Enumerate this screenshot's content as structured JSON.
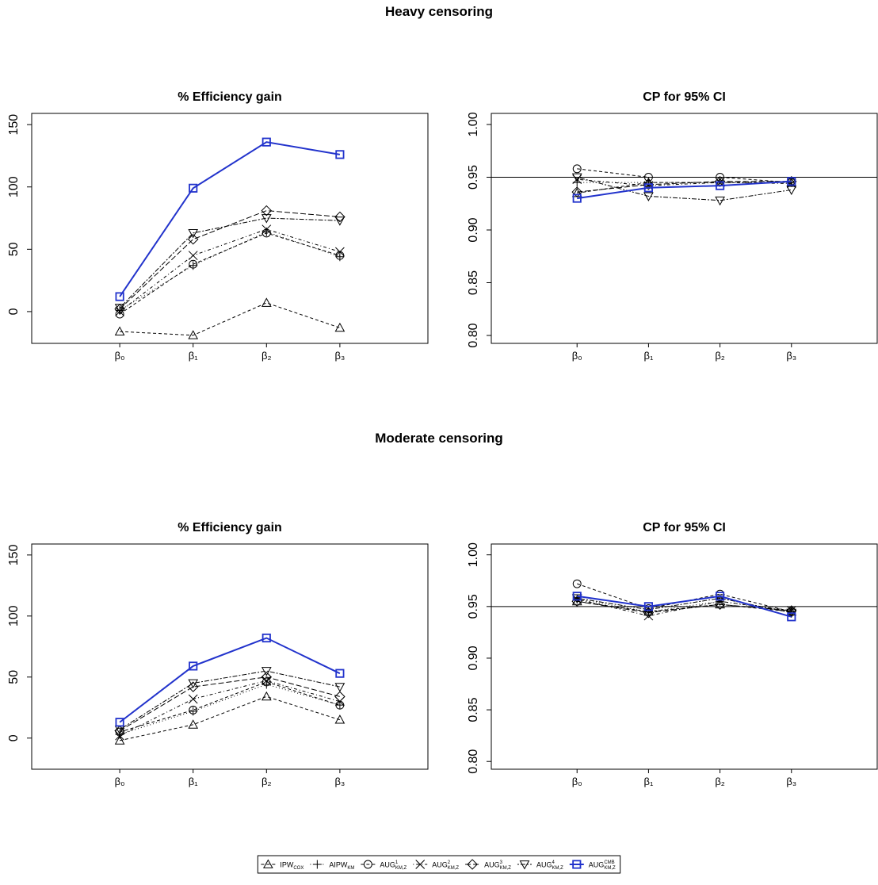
{
  "sections": [
    "Heavy censoring",
    "Moderate censoring"
  ],
  "legend": [
    {
      "name": "IPW",
      "sub": "COX",
      "marker": "triangle",
      "dash": "dashed",
      "color": "#000000"
    },
    {
      "name": "AIPW",
      "sub": "KM",
      "marker": "plus",
      "dash": "dotted",
      "color": "#000000"
    },
    {
      "name": "AUG",
      "sub": "KM,Z",
      "sup": "1",
      "marker": "circle",
      "dash": "dashed",
      "color": "#000000"
    },
    {
      "name": "AUG",
      "sub": "KM,Z",
      "sup": "2",
      "marker": "cross",
      "dash": "dotdash",
      "color": "#000000"
    },
    {
      "name": "AUG",
      "sub": "KM,Z",
      "sup": "3",
      "marker": "diamond",
      "dash": "longdash",
      "color": "#000000"
    },
    {
      "name": "AUG",
      "sub": "KM,Z",
      "sup": "4",
      "marker": "down-triangle",
      "dash": "twodash",
      "color": "#000000"
    },
    {
      "name": "AUG",
      "sub": "KM,Z",
      "sup": "CMB",
      "marker": "square",
      "dash": "solid",
      "color": "#2233cc"
    }
  ],
  "chart_data": [
    {
      "type": "line",
      "title": "% Efficiency gain",
      "x": [
        1,
        2,
        3,
        4
      ],
      "xlim": [
        -0.2,
        5.2
      ],
      "xticks": [
        {
          "value": 1,
          "label": "β₀"
        },
        {
          "value": 2,
          "label": "β₁"
        },
        {
          "value": 3,
          "label": "β₂"
        },
        {
          "value": 4,
          "label": "β₃"
        }
      ],
      "ylim": [
        -25.5,
        159
      ],
      "yticks": [
        0,
        50,
        100,
        150
      ],
      "series": [
        {
          "values": [
            -16,
            -19,
            7,
            -13
          ]
        },
        {
          "values": [
            1,
            37,
            64,
            44
          ]
        },
        {
          "values": [
            -2,
            38,
            63,
            45
          ]
        },
        {
          "values": [
            0,
            45,
            66,
            48
          ]
        },
        {
          "values": [
            2,
            58,
            81,
            76
          ]
        },
        {
          "values": [
            3,
            63,
            75,
            73
          ]
        },
        {
          "values": [
            12,
            99,
            136,
            126
          ]
        }
      ]
    },
    {
      "type": "line",
      "title": "CP for 95% CI",
      "x": [
        1,
        2,
        3,
        4
      ],
      "xlim": [
        -0.2,
        5.2
      ],
      "xticks": [
        {
          "value": 1,
          "label": "β₀"
        },
        {
          "value": 2,
          "label": "β₁"
        },
        {
          "value": 3,
          "label": "β₂"
        },
        {
          "value": 4,
          "label": "β₃"
        }
      ],
      "ylim": [
        0.7925,
        1.0105
      ],
      "yticks": [
        {
          "value": 0.8,
          "label": "0.80"
        },
        {
          "value": 0.85,
          "label": "0.85"
        },
        {
          "value": 0.9,
          "label": "0.90"
        },
        {
          "value": 0.95,
          "label": "0.95"
        },
        {
          "value": 1,
          "label": "1.00"
        }
      ],
      "hline": 0.95,
      "series": [
        {
          "values": [
            0.935,
            0.945,
            0.945,
            0.945
          ]
        },
        {
          "values": [
            0.945,
            0.945,
            0.945,
            0.945
          ]
        },
        {
          "values": [
            0.958,
            0.95,
            0.95,
            0.945
          ]
        },
        {
          "values": [
            0.948,
            0.942,
            0.945,
            0.944
          ]
        },
        {
          "values": [
            0.936,
            0.943,
            0.946,
            0.946
          ]
        },
        {
          "values": [
            0.95,
            0.932,
            0.928,
            0.938
          ]
        },
        {
          "values": [
            0.93,
            0.94,
            0.942,
            0.946
          ]
        }
      ]
    },
    {
      "type": "line",
      "title": "% Efficiency gain",
      "x": [
        1,
        2,
        3,
        4
      ],
      "xlim": [
        -0.2,
        5.2
      ],
      "xticks": [
        {
          "value": 1,
          "label": "β₀"
        },
        {
          "value": 2,
          "label": "β₁"
        },
        {
          "value": 3,
          "label": "β₂"
        },
        {
          "value": 4,
          "label": "β₃"
        }
      ],
      "ylim": [
        -25.5,
        159
      ],
      "yticks": [
        0,
        50,
        100,
        150
      ],
      "series": [
        {
          "values": [
            -2,
            11,
            34,
            15
          ]
        },
        {
          "values": [
            3,
            22,
            44,
            27
          ]
        },
        {
          "values": [
            5,
            23,
            46,
            27
          ]
        },
        {
          "values": [
            2,
            32,
            47,
            30
          ]
        },
        {
          "values": [
            6,
            42,
            50,
            34
          ]
        },
        {
          "values": [
            7,
            45,
            55,
            42
          ]
        },
        {
          "values": [
            13,
            59,
            82,
            53
          ]
        }
      ]
    },
    {
      "type": "line",
      "title": "CP for 95% CI",
      "x": [
        1,
        2,
        3,
        4
      ],
      "xlim": [
        -0.2,
        5.2
      ],
      "xticks": [
        {
          "value": 1,
          "label": "β₀"
        },
        {
          "value": 2,
          "label": "β₁"
        },
        {
          "value": 3,
          "label": "β₂"
        },
        {
          "value": 4,
          "label": "β₃"
        }
      ],
      "ylim": [
        0.7925,
        1.0105
      ],
      "yticks": [
        {
          "value": 0.8,
          "label": "0.80"
        },
        {
          "value": 0.85,
          "label": "0.85"
        },
        {
          "value": 0.9,
          "label": "0.90"
        },
        {
          "value": 0.95,
          "label": "0.95"
        },
        {
          "value": 1,
          "label": "1.00"
        }
      ],
      "hline": 0.95,
      "series": [
        {
          "values": [
            0.955,
            0.945,
            0.952,
            0.945
          ]
        },
        {
          "values": [
            0.957,
            0.945,
            0.955,
            0.945
          ]
        },
        {
          "values": [
            0.972,
            0.948,
            0.962,
            0.945
          ]
        },
        {
          "values": [
            0.957,
            0.941,
            0.955,
            0.946
          ]
        },
        {
          "values": [
            0.955,
            0.944,
            0.952,
            0.946
          ]
        },
        {
          "values": [
            0.958,
            0.947,
            0.958,
            0.944
          ]
        },
        {
          "values": [
            0.96,
            0.95,
            0.96,
            0.94
          ]
        }
      ]
    }
  ]
}
